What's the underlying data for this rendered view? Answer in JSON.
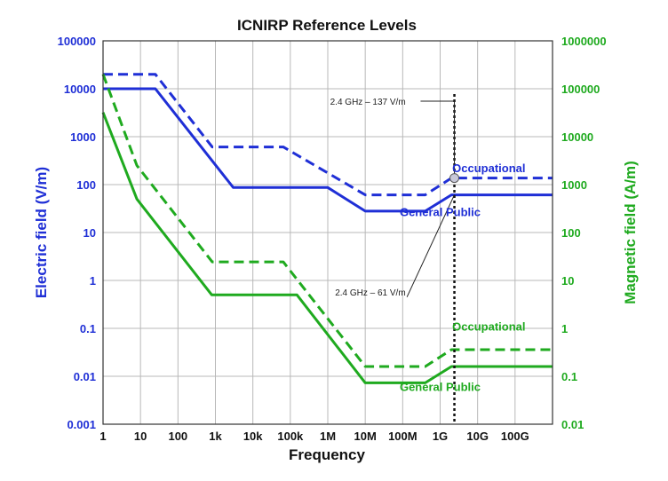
{
  "chart_data": {
    "type": "line",
    "title": "ICNIRP Reference Levels",
    "xlabel": "Frequency",
    "ylabel_left": "Electric field (V/m)",
    "ylabel_right": "Magnetic field (A/m)",
    "x_scale": "log",
    "y_scale": "log",
    "xlim": [
      1,
      1000000000000
    ],
    "ylim_left": [
      0.001,
      100000
    ],
    "ylim_right": [
      0.01,
      1000000
    ],
    "grid": true,
    "x_ticks": [
      {
        "v": 1,
        "label": "1"
      },
      {
        "v": 10,
        "label": "10"
      },
      {
        "v": 100,
        "label": "100"
      },
      {
        "v": 1000,
        "label": "1k"
      },
      {
        "v": 10000,
        "label": "10k"
      },
      {
        "v": 100000,
        "label": "100k"
      },
      {
        "v": 1000000,
        "label": "1M"
      },
      {
        "v": 10000000,
        "label": "10M"
      },
      {
        "v": 100000000,
        "label": "100M"
      },
      {
        "v": 1000000000,
        "label": "1G"
      },
      {
        "v": 10000000000,
        "label": "10G"
      },
      {
        "v": 100000000000,
        "label": "100G"
      }
    ],
    "y_ticks_left": [
      {
        "v": 0.001,
        "label": "0.001"
      },
      {
        "v": 0.01,
        "label": "0.01"
      },
      {
        "v": 0.1,
        "label": "0.1"
      },
      {
        "v": 1,
        "label": "1"
      },
      {
        "v": 10,
        "label": "10"
      },
      {
        "v": 100,
        "label": "100"
      },
      {
        "v": 1000,
        "label": "1000"
      },
      {
        "v": 10000,
        "label": "10000"
      },
      {
        "v": 100000,
        "label": "100000"
      }
    ],
    "y_ticks_right": [
      {
        "v": 0.01,
        "label": "0.01"
      },
      {
        "v": 0.1,
        "label": "0.1"
      },
      {
        "v": 1,
        "label": "1"
      },
      {
        "v": 10,
        "label": "10"
      },
      {
        "v": 100,
        "label": "100"
      },
      {
        "v": 1000,
        "label": "1000"
      },
      {
        "v": 10000,
        "label": "10000"
      },
      {
        "v": 100000,
        "label": "100000"
      },
      {
        "v": 1000000,
        "label": "1000000"
      }
    ],
    "series": [
      {
        "key": "e_occ",
        "axis": "left",
        "color": "#1f2fd6",
        "dashed": true,
        "x": [
          1,
          25,
          820,
          65000,
          10000000,
          400000000,
          2000000000,
          1000000000000
        ],
        "y": [
          20000,
          20000,
          610,
          610,
          61,
          61,
          137,
          137
        ]
      },
      {
        "key": "e_pub",
        "axis": "left",
        "color": "#1f2fd6",
        "dashed": false,
        "x": [
          1,
          25,
          3000,
          1000000,
          10000000,
          400000000,
          2000000000,
          1000000000000
        ],
        "y": [
          10000,
          10000,
          87,
          87,
          28,
          28,
          61,
          61
        ]
      },
      {
        "key": "h_occ",
        "axis": "right",
        "color": "#1faa1f",
        "dashed": true,
        "x": [
          1,
          8,
          820,
          65000,
          10000000,
          400000000,
          2000000000,
          1000000000000
        ],
        "y": [
          200000,
          2500,
          24.4,
          24.4,
          0.16,
          0.16,
          0.36,
          0.36
        ]
      },
      {
        "key": "h_pub",
        "axis": "right",
        "color": "#1faa1f",
        "dashed": false,
        "x": [
          1,
          8,
          800,
          150000,
          10000000,
          400000000,
          2000000000,
          1000000000000
        ],
        "y": [
          32000,
          500,
          5,
          5,
          0.073,
          0.073,
          0.16,
          0.16
        ]
      }
    ],
    "series_labels": [
      {
        "text": "Occupational",
        "series": "e_occ",
        "x": 20000000000,
        "y": 180
      },
      {
        "text": "General Public",
        "series": "e_pub",
        "x": 1000000000,
        "y": 22
      },
      {
        "text": "Occupational",
        "series": "h_occ",
        "x": 20000000000,
        "y": 0.9
      },
      {
        "text": "General Public",
        "series": "h_pub",
        "x": 1000000000,
        "y": 0.05
      }
    ],
    "annotations": [
      {
        "text": "2.4 GHz – 137 V/m",
        "axis": "left",
        "x": 2400000000,
        "y": 137
      },
      {
        "text": "2.4 GHz – 61 V/m",
        "axis": "left",
        "x": 2400000000,
        "y": 61
      }
    ],
    "marker_x": 2400000000
  }
}
